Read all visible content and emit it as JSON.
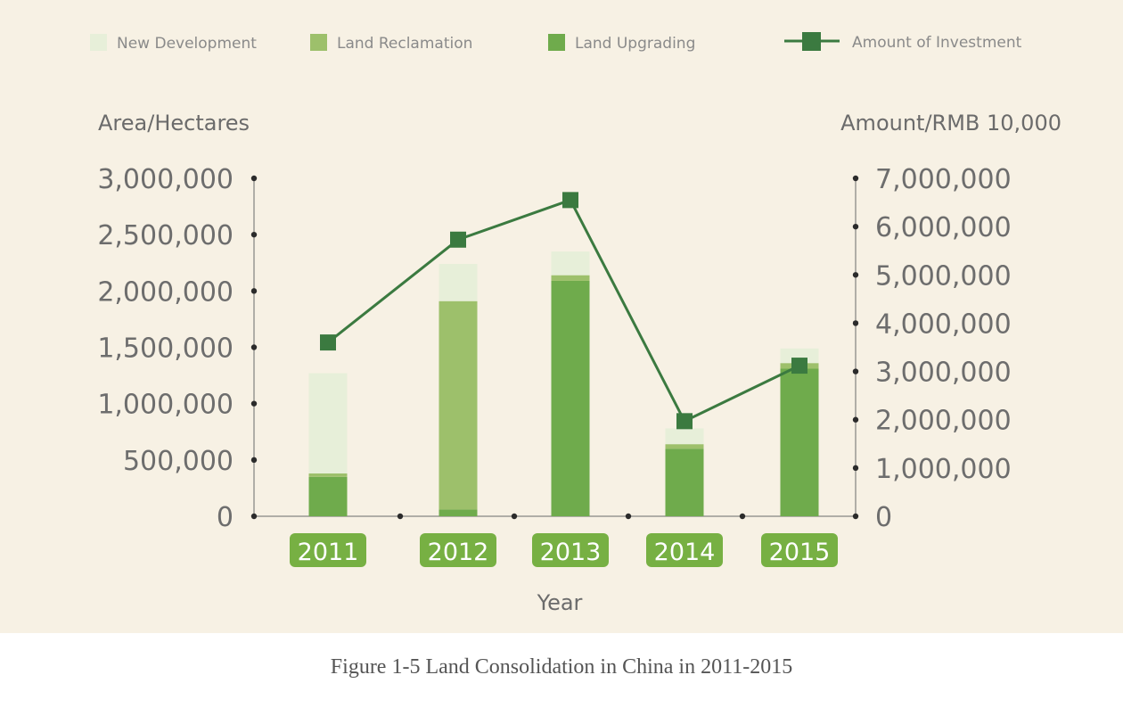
{
  "figure": {
    "caption": "Figure 1-5  Land Consolidation in China in 2011-2015"
  },
  "chart_data": {
    "type": "bar",
    "title": "",
    "categories": [
      "2011",
      "2012",
      "2013",
      "2014",
      "2015"
    ],
    "stacked": true,
    "series": [
      {
        "name": "Land Upgrading",
        "values": [
          350000,
          60000,
          2090000,
          600000,
          1310000
        ],
        "color": "#6fab4c"
      },
      {
        "name": "Land Reclamation",
        "values": [
          30000,
          1850000,
          50000,
          40000,
          50000
        ],
        "color": "#9dc06b"
      },
      {
        "name": "New Development",
        "values": [
          890000,
          330000,
          210000,
          140000,
          130000
        ],
        "color": "#e7efd9"
      }
    ],
    "line_series": {
      "name": "Amount of Investment",
      "values": [
        3600000,
        5730000,
        6550000,
        1970000,
        3120000
      ],
      "color": "#3b7a40",
      "marker": "square"
    },
    "legend_order": [
      "New Development",
      "Land Reclamation",
      "Land Upgrading",
      "Amount of Investment"
    ],
    "xlabel": "Year",
    "ylabel_left": "Area/Hectares",
    "ylabel_right": "Amount/RMB 10,000",
    "ylim_left": [
      0,
      3000000
    ],
    "ylim_right": [
      0,
      7000000
    ],
    "yticks_left": [
      "0",
      "500,000",
      "1,000,000",
      "1,500,000",
      "2,000,000",
      "2,500,000",
      "3,000,000"
    ],
    "yticks_right": [
      "0",
      "1,000,000",
      "2,000,000",
      "3,000,000",
      "4,000,000",
      "5,000,000",
      "6,000,000",
      "7,000,000"
    ],
    "legend_position": "top",
    "grid": false
  }
}
